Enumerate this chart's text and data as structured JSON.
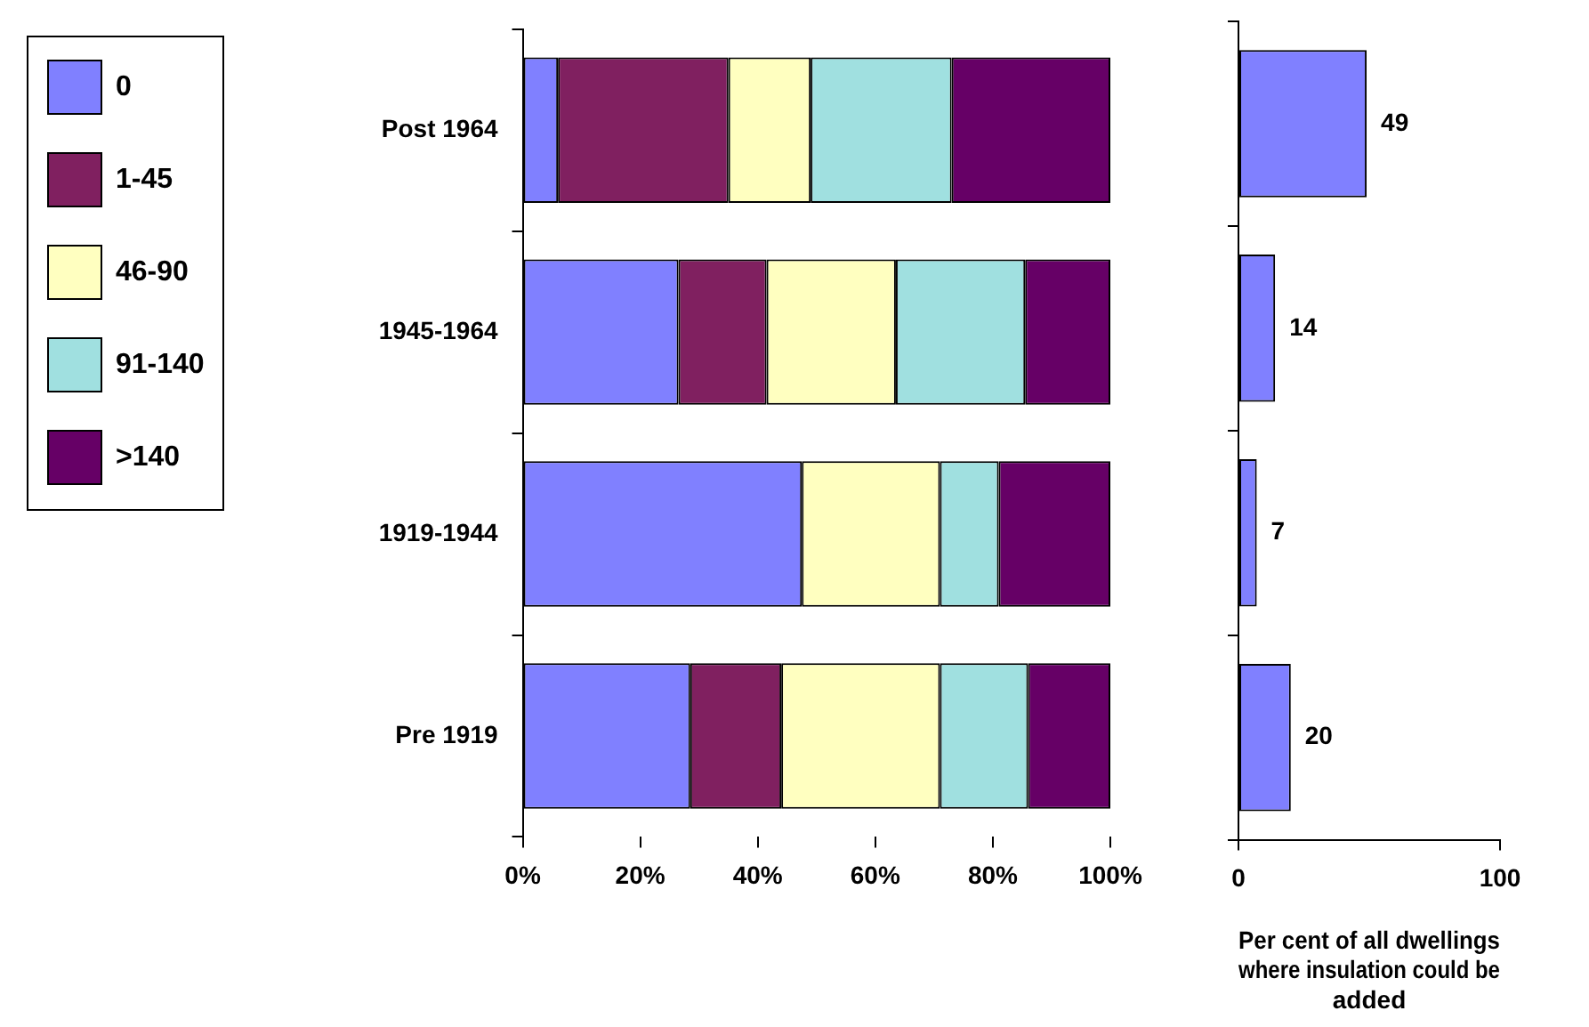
{
  "chart_data": [
    {
      "type": "bar",
      "orientation": "horizontal",
      "stacked": true,
      "categories": [
        "Post 1964",
        "1945-1964",
        "1919-1944",
        "Pre 1919"
      ],
      "series": [
        {
          "name": "0",
          "color": "#8080ff",
          "values": [
            6,
            26.5,
            47.5,
            28.5
          ]
        },
        {
          "name": "1-45",
          "color": "#802060",
          "values": [
            29,
            15,
            0,
            15.5
          ]
        },
        {
          "name": "46-90",
          "color": "#ffffc0",
          "values": [
            14,
            22,
            23.5,
            27
          ]
        },
        {
          "name": "91-140",
          "color": "#a0e0e0",
          "values": [
            24,
            22,
            10,
            15
          ]
        },
        {
          "name": ">140",
          "color": "#660066",
          "values": [
            27,
            14.5,
            19,
            14
          ]
        }
      ],
      "xlim": [
        0,
        100
      ],
      "xticks": [
        {
          "value": 0,
          "label": "0%"
        },
        {
          "value": 20,
          "label": "20%"
        },
        {
          "value": 40,
          "label": "40%"
        },
        {
          "value": 60,
          "label": "60%"
        },
        {
          "value": 80,
          "label": "80%"
        },
        {
          "value": 100,
          "label": "100%"
        }
      ],
      "grid": false,
      "legend": "left"
    },
    {
      "type": "bar",
      "orientation": "horizontal",
      "categories": [
        null,
        null,
        null,
        null
      ],
      "values": [
        49,
        14,
        7,
        20
      ],
      "color": "#8080ff",
      "data_labels": true,
      "xlim": [
        0,
        100
      ],
      "xticks": [
        0,
        100
      ],
      "xlabel": "Per cent of all dwellings where insulation could be added",
      "tick_labels": "x",
      "grid": false
    }
  ]
}
